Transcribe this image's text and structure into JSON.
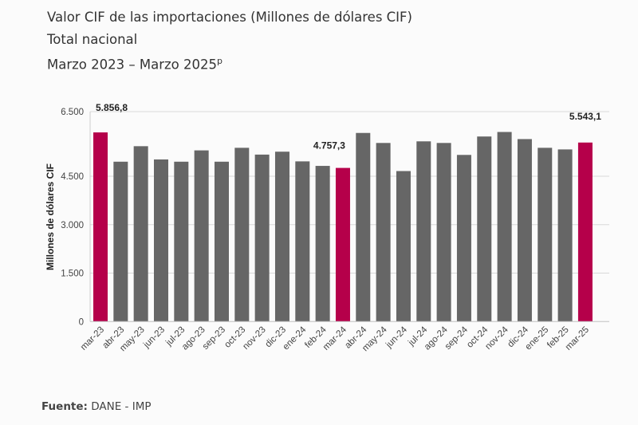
{
  "header": {
    "title_line1": "Valor CIF de las importaciones (Millones de dólares CIF)",
    "title_line2": "Total nacional",
    "title_line3": "Marzo 2023 – Marzo 2025",
    "title_line3_sup": "p"
  },
  "footer": {
    "source_label": "Fuente:",
    "source_value": "DANE - IMP"
  },
  "chart_data": {
    "type": "bar",
    "title": "",
    "xlabel": "",
    "ylabel": "Millones de dólares CIF",
    "ylim": [
      0,
      6500
    ],
    "yticks": [
      0,
      1500,
      3000,
      4500,
      6500
    ],
    "ytick_labels": [
      "0",
      "1.500",
      "3.000",
      "4.500",
      "6.500"
    ],
    "grid": true,
    "categories": [
      "mar-23",
      "abr-23",
      "may-23",
      "jun-23",
      "jul-23",
      "ago-23",
      "sep-23",
      "oct-23",
      "nov-23",
      "dic-23",
      "ene-24",
      "feb-24",
      "mar-24",
      "abr-24",
      "may-24",
      "jun-24",
      "jul-24",
      "ago-24",
      "sep-24",
      "oct-24",
      "nov-24",
      "dic-24",
      "ene-25",
      "feb-25",
      "mar-25"
    ],
    "values": [
      5856.8,
      4950,
      5430,
      5020,
      4950,
      5300,
      4950,
      5380,
      5170,
      5260,
      4960,
      4820,
      4757.3,
      5840,
      5530,
      4660,
      5580,
      5530,
      5160,
      5730,
      5870,
      5650,
      5380,
      5330,
      5543.1
    ],
    "highlighted": [
      "mar-23",
      "mar-24",
      "mar-25"
    ],
    "data_labels": {
      "mar-23": "5.856,8",
      "mar-24": "4.757,3",
      "mar-25": "5.543,1"
    },
    "colors": {
      "default": "#666666",
      "highlight": "#b5004a",
      "grid": "#d9d9d9"
    }
  }
}
